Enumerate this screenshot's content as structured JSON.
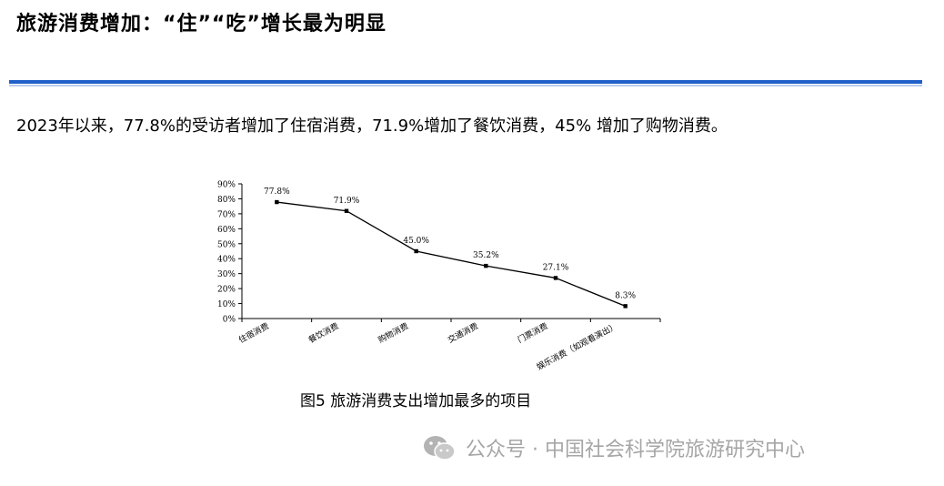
{
  "header": {
    "title": "旅游消费增加：“住”“吃”增长最为明显"
  },
  "summary": "2023年以来，77.8%的受访者增加了住宿消费，71.9%增加了餐饮消费，45% 增加了购物消费。",
  "caption": "图5 旅游消费支出增加最多的项目",
  "watermark": "公众号 · 中国社会科学院旅游研究中心",
  "chart_data": {
    "type": "line",
    "title": "",
    "xlabel": "",
    "ylabel": "",
    "categories": [
      "住宿消费",
      "餐饮消费",
      "购物消费",
      "交通消费",
      "门票消费",
      "娱乐消费（如观看演出）"
    ],
    "values": [
      77.8,
      71.9,
      45.0,
      35.2,
      27.1,
      8.3
    ],
    "data_labels": [
      "77.8%",
      "71.9%",
      "45.0%",
      "35.2%",
      "27.1%",
      "8.3%"
    ],
    "ylim": [
      0,
      90
    ],
    "yticks": [
      0,
      10,
      20,
      30,
      40,
      50,
      60,
      70,
      80,
      90
    ],
    "ytick_labels": [
      "0%",
      "10%",
      "20%",
      "30%",
      "40%",
      "50%",
      "60%",
      "70%",
      "80%",
      "90%"
    ],
    "grid": false,
    "line_color": "#000000"
  }
}
